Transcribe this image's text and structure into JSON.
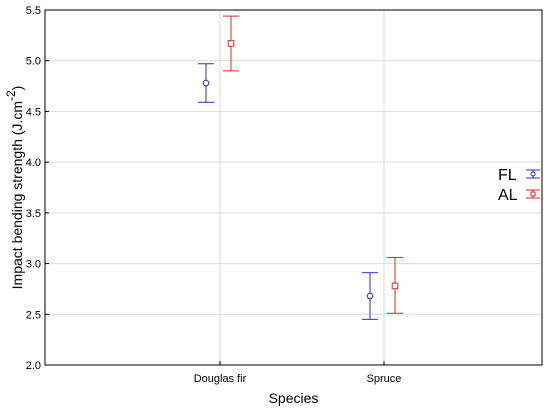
{
  "chart_data": {
    "type": "scatter",
    "title": "",
    "xlabel": "Species",
    "ylabel": "Impact bending strength (J.cm",
    "ylabel_sup": "-2",
    "ylabel_close": ")",
    "categories": [
      "Douglas fir",
      "Spruce"
    ],
    "ylim": [
      2.0,
      5.5
    ],
    "yticks": [
      "2.0",
      "2.5",
      "3.0",
      "3.5",
      "4.0",
      "4.5",
      "5.0",
      "5.5"
    ],
    "grid": true,
    "legend_position": "right",
    "series": [
      {
        "name": "FL",
        "color": "#2b2bd9",
        "marker": "circle",
        "values": [
          4.78,
          2.68
        ],
        "lower": [
          4.59,
          2.45
        ],
        "upper": [
          4.97,
          2.91
        ]
      },
      {
        "name": "AL",
        "color": "#d92b2b",
        "marker": "square",
        "values": [
          5.17,
          2.78
        ],
        "lower": [
          4.9,
          2.51
        ],
        "upper": [
          5.44,
          3.06
        ]
      }
    ]
  }
}
